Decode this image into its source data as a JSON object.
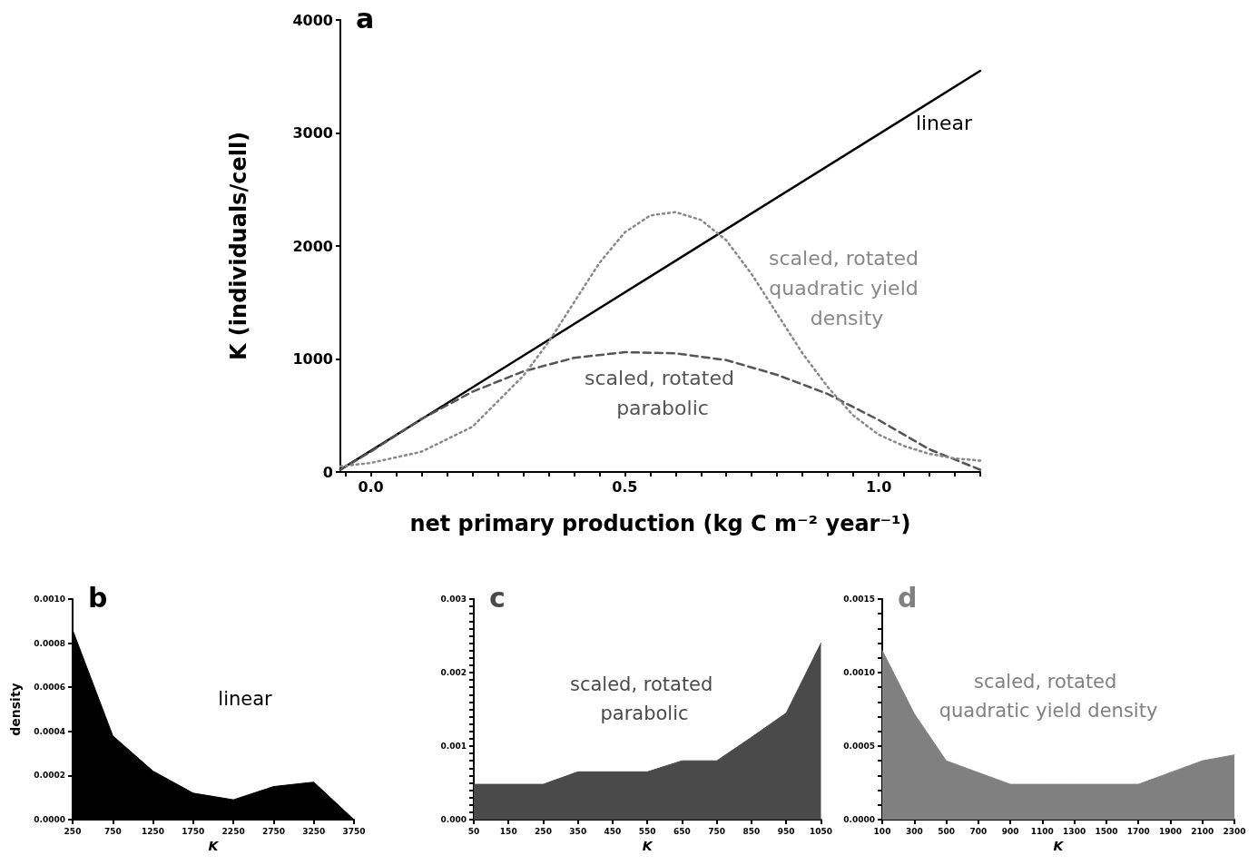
{
  "chart_data": [
    {
      "type": "line",
      "title": "a",
      "xlabel": "net primary production (kg C m⁻² year⁻¹)",
      "ylabel": "K (individuals/cell)",
      "xlim": [
        -0.06,
        1.2
      ],
      "xticks": [
        {
          "value": -0.05,
          "label": null
        },
        {
          "value": 0,
          "label": "0.0"
        },
        {
          "value": 0.05,
          "label": null
        },
        {
          "value": 0.1,
          "label": null
        },
        {
          "value": 0.15,
          "label": null
        },
        {
          "value": 0.2,
          "label": null
        },
        {
          "value": 0.25,
          "label": null
        },
        {
          "value": 0.3,
          "label": null
        },
        {
          "value": 0.35,
          "label": null
        },
        {
          "value": 0.4,
          "label": null
        },
        {
          "value": 0.45,
          "label": null
        },
        {
          "value": 0.5,
          "label": "0.5"
        },
        {
          "value": 0.55,
          "label": null
        },
        {
          "value": 0.6,
          "label": null
        },
        {
          "value": 0.65,
          "label": null
        },
        {
          "value": 0.7,
          "label": null
        },
        {
          "value": 0.75,
          "label": null
        },
        {
          "value": 0.8,
          "label": null
        },
        {
          "value": 0.85,
          "label": null
        },
        {
          "value": 0.9,
          "label": null
        },
        {
          "value": 0.95,
          "label": null
        },
        {
          "value": 1,
          "label": "1.0"
        },
        {
          "value": 1.05,
          "label": null
        },
        {
          "value": 1.1,
          "label": null
        },
        {
          "value": 1.15,
          "label": null
        },
        {
          "value": 1.2,
          "label": null
        }
      ],
      "ylim": [
        0,
        4000
      ],
      "yticks": [
        0,
        1000,
        2000,
        3000,
        4000
      ],
      "series": [
        {
          "name": "linear",
          "color": "#000000",
          "line_style": "solid",
          "x": [
            -0.06,
            1.2
          ],
          "values": [
            20,
            3550
          ]
        },
        {
          "name": "scaled, rotated parabolic",
          "color": "#555555",
          "line_style": "dashed",
          "x": [
            -0.06,
            0,
            0.1,
            0.2,
            0.3,
            0.4,
            0.5,
            0.6,
            0.7,
            0.8,
            0.9,
            1,
            1.1,
            1.2
          ],
          "values": [
            20,
            180,
            470,
            710,
            890,
            1010,
            1060,
            1050,
            990,
            860,
            690,
            460,
            200,
            20
          ]
        },
        {
          "name": "scaled, rotated quadratic yield density",
          "color": "#888888",
          "line_style": "dotted",
          "x": [
            -0.06,
            0,
            0.1,
            0.2,
            0.3,
            0.35,
            0.4,
            0.45,
            0.5,
            0.55,
            0.6,
            0.65,
            0.7,
            0.75,
            0.8,
            0.85,
            0.9,
            0.95,
            1,
            1.05,
            1.1,
            1.15,
            1.2
          ],
          "values": [
            50,
            80,
            180,
            400,
            850,
            1150,
            1500,
            1850,
            2120,
            2270,
            2300,
            2230,
            2050,
            1750,
            1400,
            1050,
            750,
            500,
            330,
            230,
            160,
            120,
            100
          ]
        }
      ]
    },
    {
      "type": "area",
      "title": "b",
      "xlabel": "K",
      "ylabel": "density",
      "xlim": [
        250,
        3750
      ],
      "xticks": [
        250,
        750,
        1250,
        1750,
        2250,
        2750,
        3250,
        3750
      ],
      "ylim": [
        0,
        0.001
      ],
      "yticks": [
        {
          "value": 0,
          "label": "0.0000"
        },
        {
          "value": 0.0002,
          "label": "0.0002"
        },
        {
          "value": 0.0004,
          "label": "0.0004"
        },
        {
          "value": 0.0006,
          "label": "0.0006"
        },
        {
          "value": 0.0008,
          "label": "0.0008"
        },
        {
          "value": 0.001,
          "label": "0.0010"
        }
      ],
      "series": [
        {
          "name": "linear",
          "color": "#000000",
          "x": [
            250,
            750,
            1250,
            1750,
            2250,
            2750,
            3250,
            3750
          ],
          "values": [
            0.00086,
            0.00038,
            0.00022,
            0.00012,
            9e-05,
            0.00015,
            0.00017,
            0
          ]
        }
      ]
    },
    {
      "type": "area",
      "title": "c",
      "xlabel": "K",
      "xlim": [
        50,
        1050
      ],
      "xticks": [
        50,
        150,
        250,
        350,
        450,
        550,
        650,
        750,
        850,
        950,
        1050
      ],
      "ylim": [
        0,
        0.003
      ],
      "yticks": [
        {
          "value": 0,
          "label": "0.000"
        },
        {
          "value": 0.0001,
          "label": null
        },
        {
          "value": 0.0002,
          "label": null
        },
        {
          "value": 0.0003,
          "label": null
        },
        {
          "value": 0.0004,
          "label": null
        },
        {
          "value": 0.0005,
          "label": null
        },
        {
          "value": 0.0006,
          "label": null
        },
        {
          "value": 0.0007,
          "label": null
        },
        {
          "value": 0.0008,
          "label": null
        },
        {
          "value": 0.0009,
          "label": null
        },
        {
          "value": 0.001,
          "label": "0.001"
        },
        {
          "value": 0.0011,
          "label": null
        },
        {
          "value": 0.0012,
          "label": null
        },
        {
          "value": 0.0013,
          "label": null
        },
        {
          "value": 0.0014,
          "label": null
        },
        {
          "value": 0.0015,
          "label": null
        },
        {
          "value": 0.0016,
          "label": null
        },
        {
          "value": 0.0017,
          "label": null
        },
        {
          "value": 0.0018,
          "label": null
        },
        {
          "value": 0.0019,
          "label": null
        },
        {
          "value": 0.002,
          "label": "0.002"
        },
        {
          "value": 0.0021,
          "label": null
        },
        {
          "value": 0.0022,
          "label": null
        },
        {
          "value": 0.0023,
          "label": null
        },
        {
          "value": 0.0024,
          "label": null
        },
        {
          "value": 0.0025,
          "label": null
        },
        {
          "value": 0.0026,
          "label": null
        },
        {
          "value": 0.0027,
          "label": null
        },
        {
          "value": 0.0028,
          "label": null
        },
        {
          "value": 0.0029,
          "label": null
        },
        {
          "value": 0.003,
          "label": "0.003"
        }
      ],
      "series": [
        {
          "name": "scaled, rotated parabolic",
          "color": "#4a4a4a",
          "x": [
            50,
            150,
            250,
            350,
            450,
            550,
            650,
            750,
            850,
            950,
            1050
          ],
          "values": [
            0.00048,
            0.00048,
            0.00048,
            0.00065,
            0.00065,
            0.00065,
            0.0008,
            0.0008,
            0.00112,
            0.00145,
            0.0024
          ]
        }
      ]
    },
    {
      "type": "area",
      "title": "d",
      "xlabel": "K",
      "xlim": [
        100,
        2300
      ],
      "xticks": [
        100,
        300,
        500,
        700,
        900,
        1100,
        1300,
        1500,
        1700,
        1900,
        2100,
        2300
      ],
      "ylim": [
        0,
        0.0015
      ],
      "yticks": [
        {
          "value": 0,
          "label": "0.0000"
        },
        {
          "value": 0.0001,
          "label": null
        },
        {
          "value": 0.0002,
          "label": null
        },
        {
          "value": 0.0003,
          "label": null
        },
        {
          "value": 0.0004,
          "label": null
        },
        {
          "value": 0.0005,
          "label": "0.0005"
        },
        {
          "value": 0.0006,
          "label": null
        },
        {
          "value": 0.0007,
          "label": null
        },
        {
          "value": 0.0008,
          "label": null
        },
        {
          "value": 0.0009,
          "label": null
        },
        {
          "value": 0.001,
          "label": "0.0010"
        },
        {
          "value": 0.0011,
          "label": null
        },
        {
          "value": 0.0012,
          "label": null
        },
        {
          "value": 0.0013,
          "label": null
        },
        {
          "value": 0.0014,
          "label": null
        },
        {
          "value": 0.0015,
          "label": "0.0015"
        }
      ],
      "series": [
        {
          "name": "scaled, rotated quadratic yield density",
          "color": "#808080",
          "x": [
            100,
            300,
            500,
            700,
            900,
            1100,
            1300,
            1500,
            1700,
            1900,
            2100,
            2300
          ],
          "values": [
            0.00115,
            0.00072,
            0.0004,
            0.00032,
            0.00024,
            0.00024,
            0.00024,
            0.00024,
            0.00024,
            0.00032,
            0.0004,
            0.00044
          ]
        }
      ]
    }
  ]
}
